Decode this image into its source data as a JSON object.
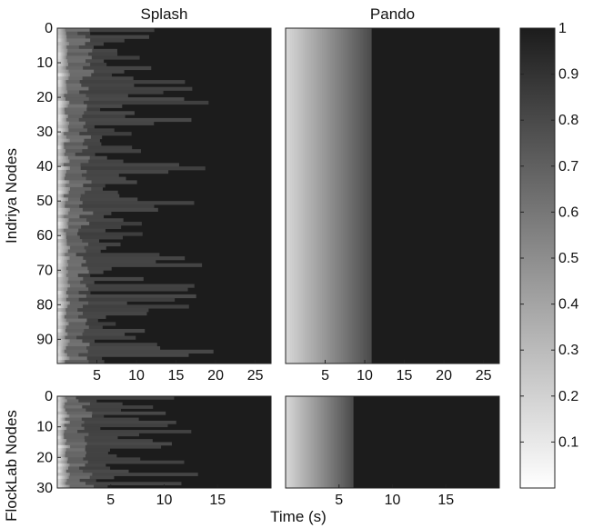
{
  "chart_data": [
    {
      "type": "heatmap",
      "title": "Splash",
      "ylabel": "Indriya Nodes",
      "xlim": [
        0,
        27
      ],
      "ylim": [
        0,
        97
      ],
      "xticks": [
        5,
        10,
        15,
        20,
        25
      ],
      "yticks": [
        0,
        10,
        20,
        30,
        40,
        50,
        60,
        70,
        80,
        90
      ],
      "rows": 97,
      "seed": 7,
      "profile": "splash"
    },
    {
      "type": "heatmap",
      "title": "Pando",
      "xlim": [
        0,
        27
      ],
      "ylim": [
        0,
        97
      ],
      "xticks": [
        5,
        10,
        15,
        20,
        25
      ],
      "rows": 97,
      "completion_time": 10.8,
      "profile": "pando"
    },
    {
      "type": "heatmap",
      "ylabel": "FlockLab Nodes",
      "xlim": [
        0,
        20
      ],
      "ylim": [
        0,
        30
      ],
      "xticks": [
        5,
        10,
        15
      ],
      "yticks": [
        0,
        10,
        20,
        30
      ],
      "rows": 30,
      "seed": 19,
      "profile": "splash"
    },
    {
      "type": "heatmap",
      "xlim": [
        0,
        20
      ],
      "ylim": [
        0,
        30
      ],
      "xticks": [
        5,
        10,
        15
      ],
      "rows": 30,
      "completion_time": 6.3,
      "profile": "pando"
    }
  ],
  "xlabel": "Time (s)",
  "colorbar": {
    "min": 0,
    "max": 1,
    "ticks": [
      "0.1",
      "0.2",
      "0.3",
      "0.4",
      "0.5",
      "0.6",
      "0.7",
      "0.8",
      "0.9",
      "1"
    ],
    "color_low": "#ffffff",
    "color_high": "#1c1c1c"
  }
}
